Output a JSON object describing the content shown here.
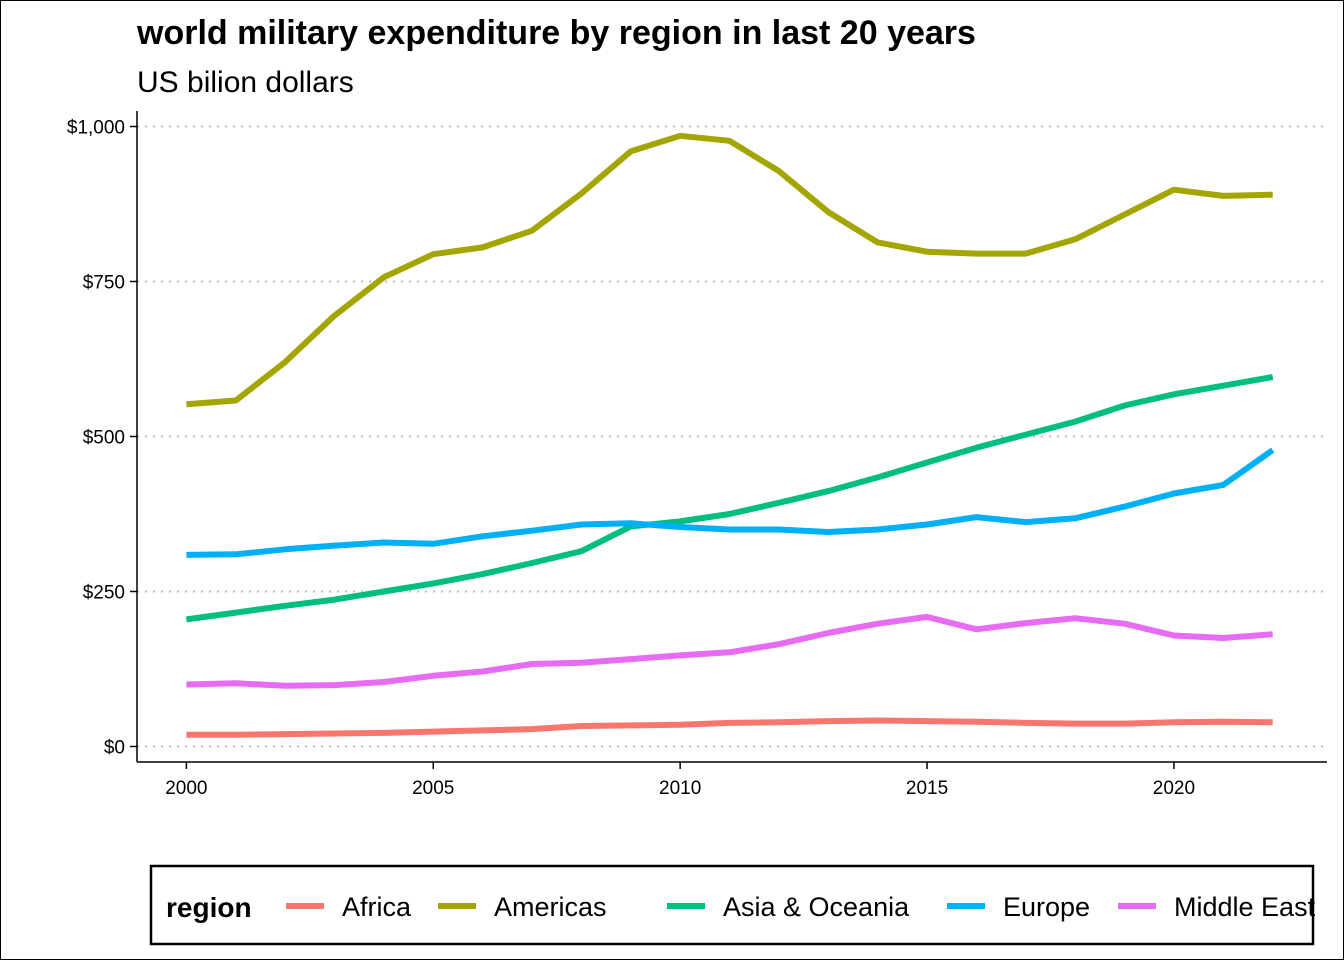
{
  "chart_data": {
    "type": "line",
    "title": "world military expenditure by region in last 20 years",
    "subtitle": "US bilion dollars",
    "xlabel": "",
    "ylabel": "",
    "x": [
      2000,
      2001,
      2002,
      2003,
      2004,
      2005,
      2006,
      2007,
      2008,
      2009,
      2010,
      2011,
      2012,
      2013,
      2014,
      2015,
      2016,
      2017,
      2018,
      2019,
      2020,
      2021,
      2022
    ],
    "xlim": [
      1999,
      2023.1
    ],
    "ylim": [
      -25,
      1025
    ],
    "x_ticks": [
      2000,
      2005,
      2010,
      2015,
      2020
    ],
    "x_tick_labels": [
      "2000",
      "2005",
      "2010",
      "2015",
      "2020"
    ],
    "y_ticks": [
      0,
      250,
      500,
      750,
      1000
    ],
    "y_tick_labels": [
      "$0",
      "$250",
      "$500",
      "$750",
      "$1,000"
    ],
    "grid": "horizontal dotted major lines",
    "legend_title": "region",
    "legend_position": "bottom",
    "series": [
      {
        "name": "Africa",
        "color": "#F8766D",
        "values": [
          19,
          19,
          20,
          21,
          22,
          24,
          26,
          28,
          33,
          34,
          35,
          38,
          39,
          41,
          42,
          41,
          40,
          38,
          37,
          37,
          39,
          40,
          39
        ]
      },
      {
        "name": "Americas",
        "color": "#A3A500",
        "values": [
          552,
          558,
          620,
          695,
          757,
          794,
          805,
          832,
          892,
          960,
          985,
          977,
          928,
          862,
          813,
          798,
          795,
          795,
          818,
          858,
          898,
          888,
          890
        ]
      },
      {
        "name": "Asia & Oceania",
        "color": "#00BF7D",
        "values": [
          205,
          216,
          227,
          237,
          250,
          263,
          278,
          296,
          315,
          355,
          363,
          375,
          393,
          412,
          434,
          458,
          482,
          503,
          524,
          550,
          568,
          582,
          596
        ]
      },
      {
        "name": "Europe",
        "color": "#00B0F6",
        "values": [
          309,
          310,
          318,
          324,
          329,
          327,
          339,
          348,
          358,
          360,
          354,
          350,
          350,
          346,
          350,
          358,
          370,
          362,
          368,
          387,
          408,
          422,
          478
        ]
      },
      {
        "name": "Middle East",
        "color": "#E76BF3",
        "values": [
          100,
          102,
          98,
          99,
          104,
          114,
          121,
          133,
          135,
          141,
          147,
          152,
          165,
          183,
          198,
          209,
          189,
          199,
          207,
          198,
          179,
          175,
          181
        ]
      }
    ]
  }
}
